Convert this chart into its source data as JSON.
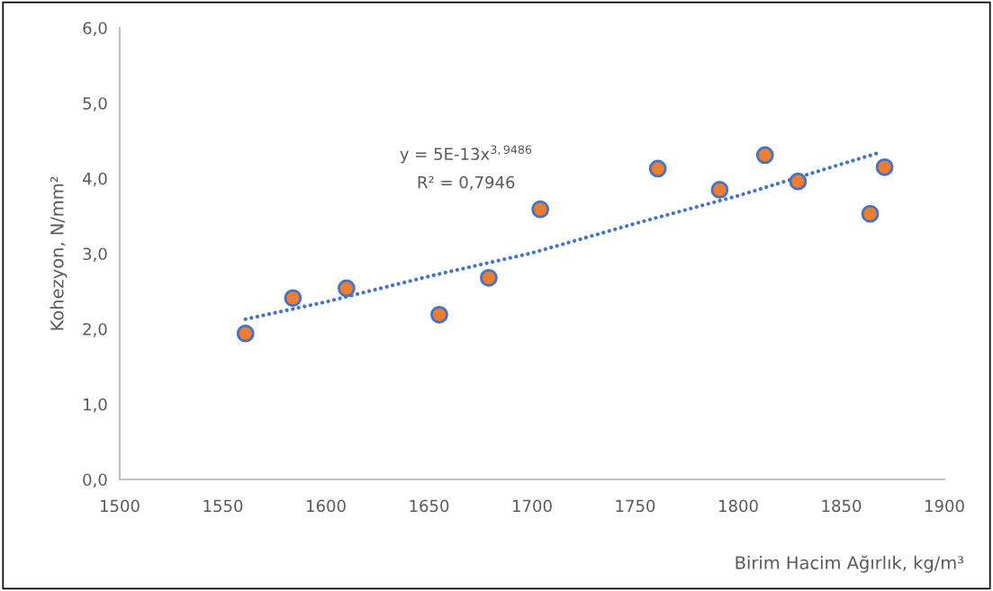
{
  "chart_data": {
    "type": "scatter",
    "xlabel": "Birim Hacim Ağırlık, kg/m³",
    "ylabel": "Kohezyon, N/mm²",
    "annotations": [
      "y = 5E-13x$^{3,9486}$",
      "R² = 0,7946"
    ],
    "x": [
      1561,
      1584,
      1610,
      1655,
      1679,
      1704,
      1761,
      1791,
      1813,
      1829,
      1864,
      1871
    ],
    "series": [
      {
        "color": "#ed7d31",
        "marker": "circle",
        "values": [
          1.94,
          2.41,
          2.54,
          2.19,
          2.68,
          3.59,
          4.13,
          3.85,
          4.31,
          3.96,
          3.53,
          4.15
        ]
      },
      {
        "type": "line",
        "color": "#4472c4",
        "line_style": "dotted",
        "x": [
          1561,
          1600,
          1650,
          1700,
          1750,
          1800,
          1850,
          1868
        ],
        "values": [
          2.13,
          2.36,
          2.7,
          3.01,
          3.4,
          3.77,
          4.19,
          4.34
        ]
      }
    ],
    "xlim": [
      1500,
      1900
    ],
    "xticks": [
      1500,
      1550,
      1600,
      1650,
      1700,
      1750,
      1800,
      1850,
      1900
    ],
    "ylim": [
      0,
      6
    ],
    "yticks": [
      {
        "value": 0,
        "label": "0,0"
      },
      {
        "value": 1,
        "label": "1,0"
      },
      {
        "value": 2,
        "label": "2,0"
      },
      {
        "value": 3,
        "label": "3,0"
      },
      {
        "value": 4,
        "label": "4,0"
      },
      {
        "value": 5,
        "label": "5,0"
      },
      {
        "value": 6,
        "label": "6,0"
      }
    ],
    "grid": false,
    "legend": false
  }
}
